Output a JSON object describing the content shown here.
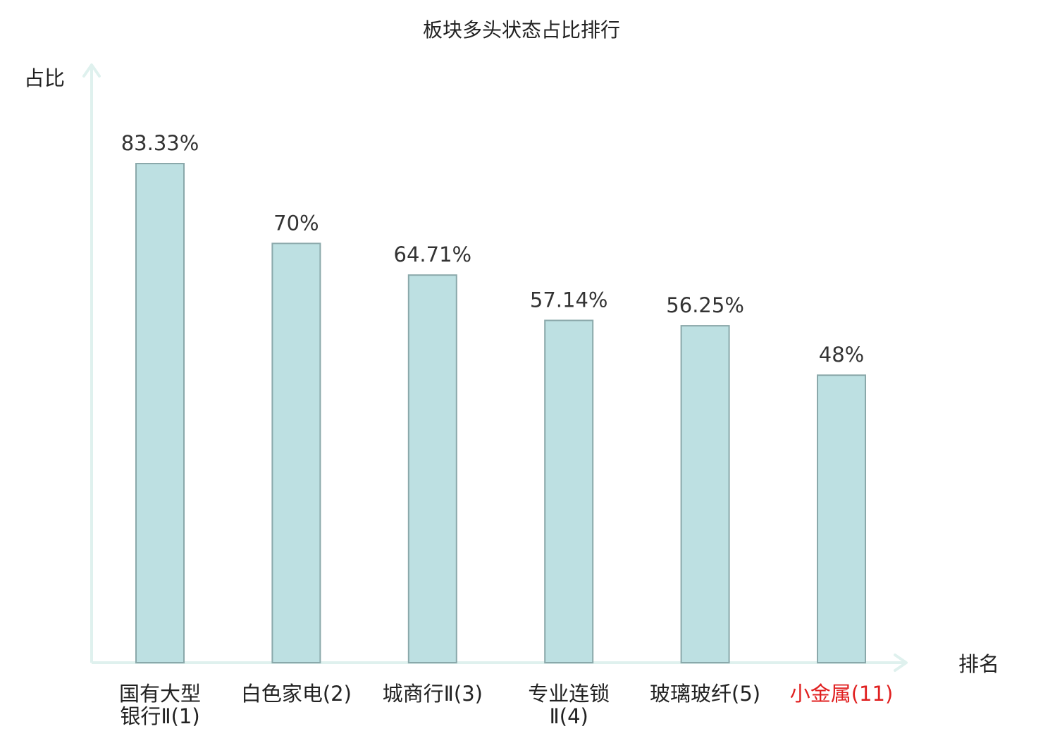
{
  "chart_data": {
    "type": "bar",
    "title": "板块多头状态占比排行",
    "ylabel": "占比",
    "xlabel": "排名",
    "categories": [
      [
        "国有大型",
        "银行Ⅱ(1)"
      ],
      [
        "白色家电(2)"
      ],
      [
        "城商行Ⅱ(3)"
      ],
      [
        "专业连锁",
        "Ⅱ(4)"
      ],
      [
        "玻璃玻纤(5)"
      ],
      [
        "小金属(11)"
      ]
    ],
    "values": [
      83.33,
      70,
      64.71,
      57.14,
      56.25,
      48
    ],
    "value_labels": [
      "83.33%",
      "70%",
      "64.71%",
      "57.14%",
      "56.25%",
      "48%"
    ],
    "highlight_index": 5,
    "ylim": [
      0,
      100
    ],
    "grid": false,
    "legend": "none",
    "colors": {
      "bar_fill": "#bde0e2",
      "bar_stroke": "#8aa8aa",
      "axis": "#dff1ee",
      "text": "#222222",
      "value_text": "#333333",
      "highlight_text": "#e02020"
    }
  }
}
